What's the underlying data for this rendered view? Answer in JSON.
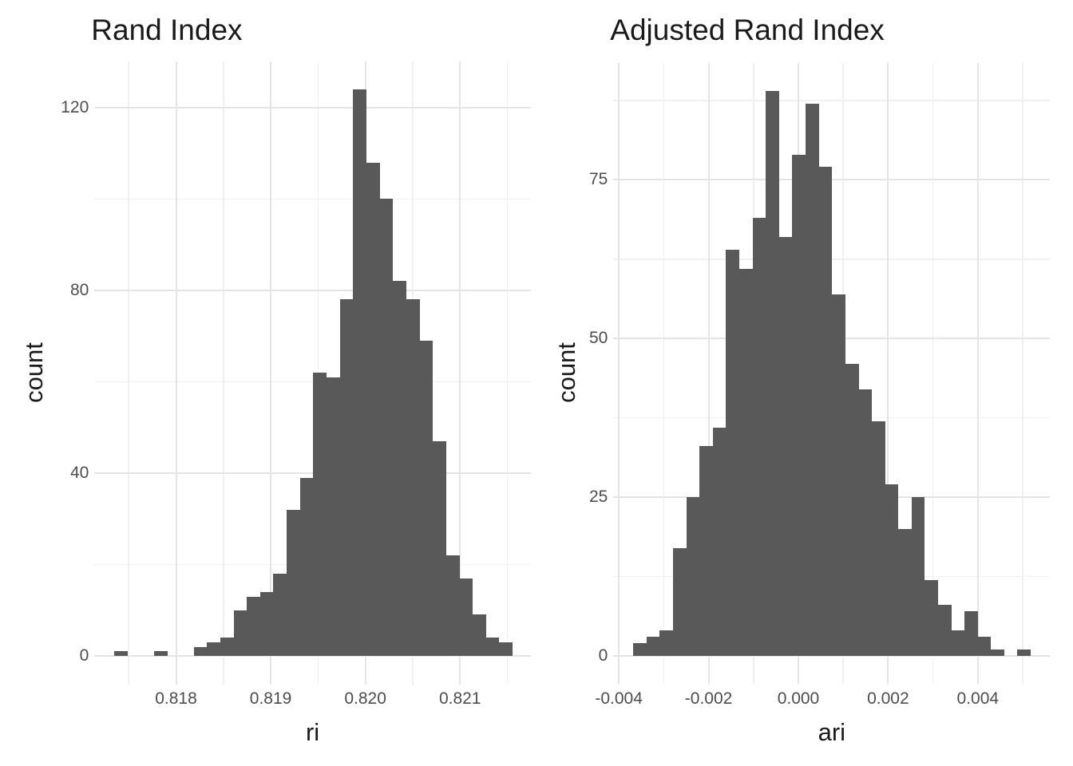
{
  "figure": {
    "background": "#ffffff",
    "bar_color": "#595959",
    "grid_major_color": "#e4e4e4",
    "grid_minor_color": "#f0f0f0",
    "axis_text_color": "#4d4d4d",
    "title_color": "#1a1a1a"
  },
  "chart_data": [
    {
      "type": "bar",
      "variant": "histogram",
      "title": "Rand Index",
      "xlabel": "ri",
      "ylabel": "count",
      "grid": true,
      "legend_position": "none",
      "bin_start": 0.817346,
      "bin_width": 0.0001402,
      "counts": [
        1,
        0,
        0,
        1,
        0,
        0,
        2,
        3,
        4,
        10,
        13,
        14,
        18,
        32,
        39,
        62,
        61,
        78,
        124,
        108,
        100,
        82,
        78,
        69,
        47,
        22,
        17,
        9,
        4,
        3
      ],
      "xlim": [
        0.817138,
        0.821747
      ],
      "ylim": [
        -6.2,
        130.1
      ],
      "x_ticks": [
        {
          "value": 0.818,
          "label": "0.818"
        },
        {
          "value": 0.819,
          "label": "0.819"
        },
        {
          "value": 0.82,
          "label": "0.820"
        },
        {
          "value": 0.821,
          "label": "0.821"
        }
      ],
      "y_ticks": [
        {
          "value": 0,
          "label": "0"
        },
        {
          "value": 40,
          "label": "40"
        },
        {
          "value": 80,
          "label": "80"
        },
        {
          "value": 120,
          "label": "120"
        }
      ],
      "x_minor": [
        0.8175,
        0.8185,
        0.8195,
        0.8205,
        0.8215
      ],
      "y_minor": [
        20,
        60,
        100
      ]
    },
    {
      "type": "bar",
      "variant": "histogram",
      "title": "Adjusted Rand Index",
      "xlabel": "ari",
      "ylabel": "count",
      "grid": true,
      "legend_position": "none",
      "bin_start": -0.003677,
      "bin_width": 0.000295,
      "counts": [
        2,
        3,
        4,
        17,
        25,
        33,
        36,
        64,
        61,
        69,
        89,
        66,
        79,
        87,
        77,
        57,
        46,
        42,
        37,
        27,
        20,
        25,
        12,
        8,
        4,
        7,
        3,
        1,
        0,
        1
      ],
      "xlim": [
        -0.004122,
        0.005612
      ],
      "ylim": [
        -4.45,
        93.4
      ],
      "x_ticks": [
        {
          "value": -0.004,
          "label": "-0.004"
        },
        {
          "value": -0.002,
          "label": "-0.002"
        },
        {
          "value": 0.0,
          "label": "0.000"
        },
        {
          "value": 0.002,
          "label": "0.002"
        },
        {
          "value": 0.004,
          "label": "0.004"
        }
      ],
      "y_ticks": [
        {
          "value": 0,
          "label": "0"
        },
        {
          "value": 25,
          "label": "25"
        },
        {
          "value": 50,
          "label": "50"
        },
        {
          "value": 75,
          "label": "75"
        }
      ],
      "x_minor": [
        -0.003,
        -0.001,
        0.001,
        0.003,
        0.005
      ],
      "y_minor": [
        12.5,
        37.5,
        62.5,
        87.5
      ]
    }
  ]
}
